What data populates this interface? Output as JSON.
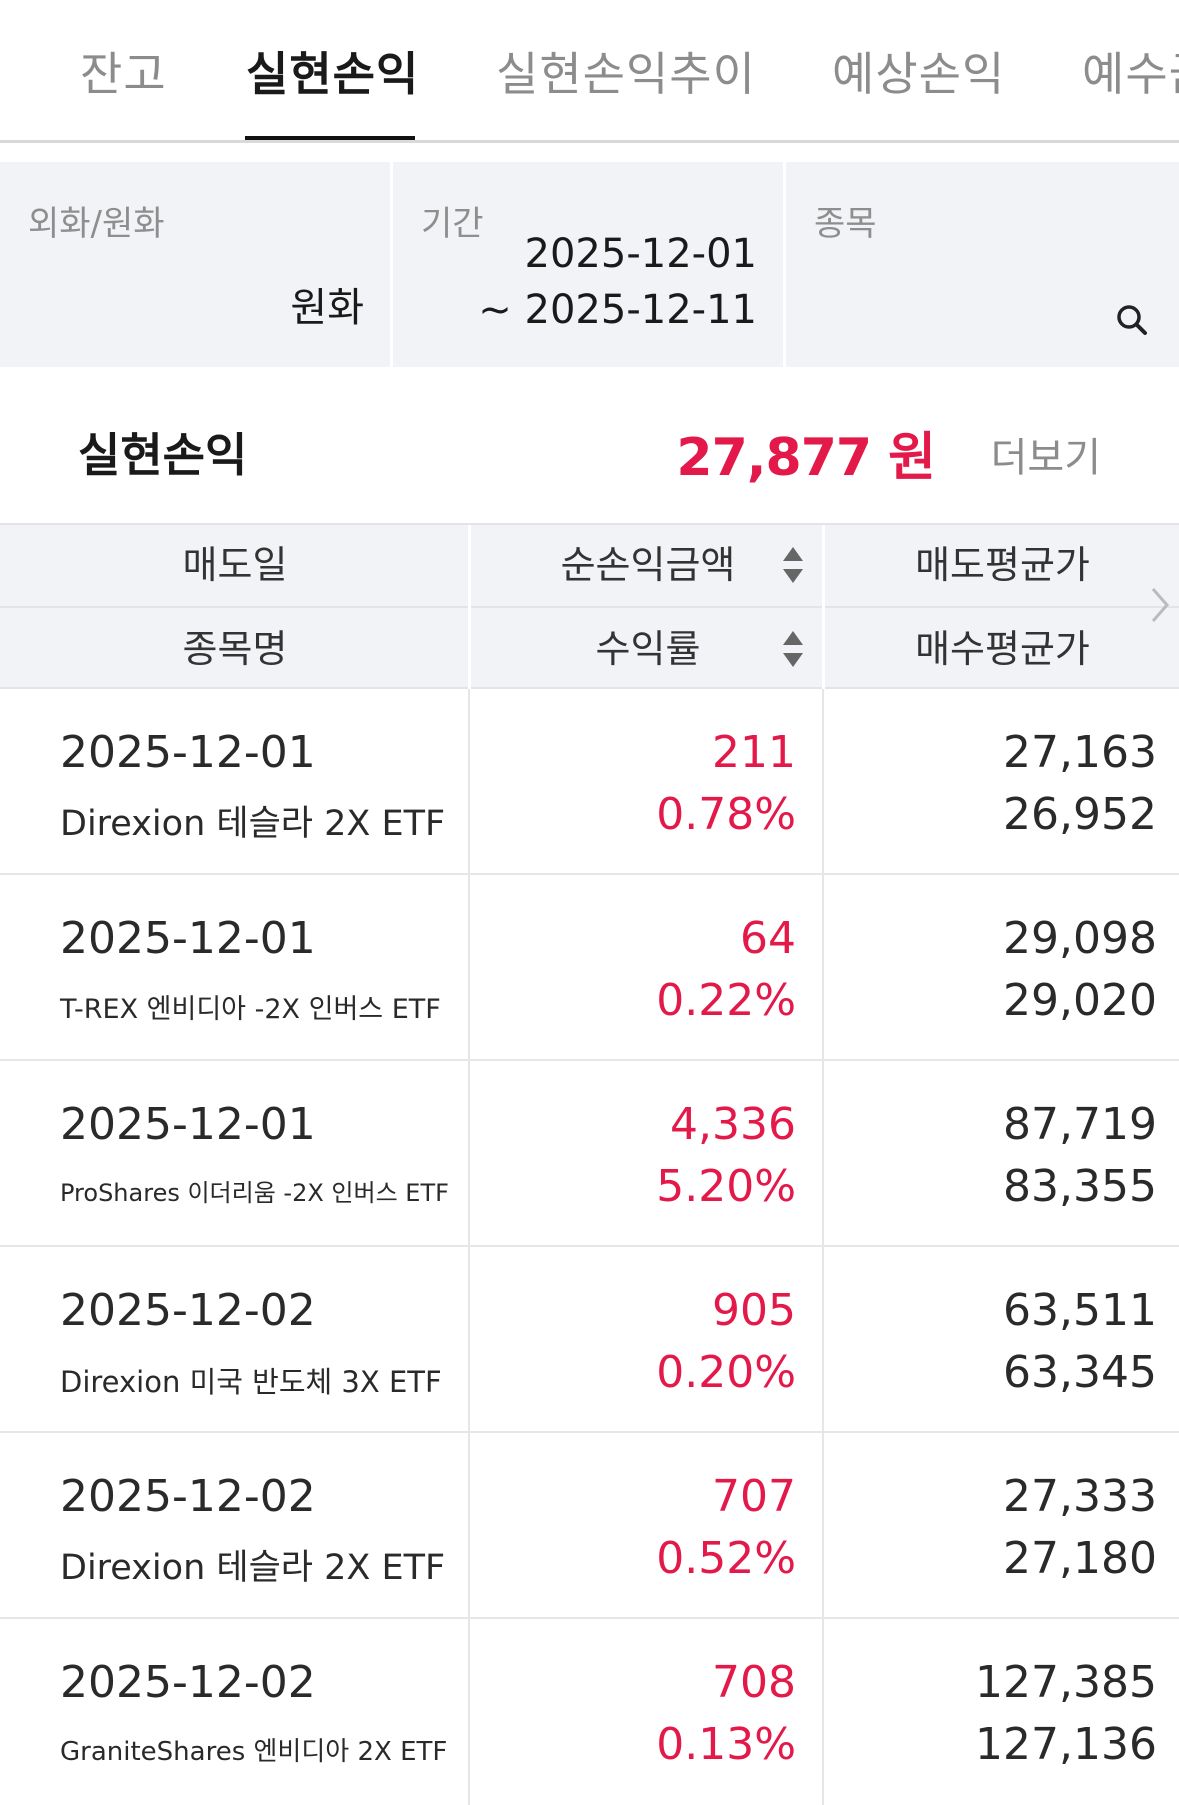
{
  "tabs": [
    {
      "label": "잔고",
      "active": false
    },
    {
      "label": "실현손익",
      "active": true
    },
    {
      "label": "실현손익추이",
      "active": false
    },
    {
      "label": "예상손익",
      "active": false
    },
    {
      "label": "예수금",
      "active": false
    }
  ],
  "filters": {
    "currency": {
      "label": "외화/원화",
      "value": "원화"
    },
    "period": {
      "label": "기간",
      "from": "2025-12-01",
      "to": "~ 2025-12-11"
    },
    "stock": {
      "label": "종목",
      "icon": "search-icon"
    }
  },
  "summary": {
    "title": "실현손익",
    "amount": "27,877 원",
    "more": "더보기"
  },
  "table": {
    "headers": {
      "sell_date": "매도일",
      "net_pl": "순손익금액",
      "sell_avg": "매도평균가",
      "stock_name": "종목명",
      "return_rate": "수익률",
      "buy_avg": "매수평균가"
    },
    "rows": [
      {
        "date": "2025-12-01",
        "name": "Direxion 테슬라 2X ETF",
        "pl": "211",
        "rate": "0.78%",
        "sell": "27,163",
        "buy": "26,952"
      },
      {
        "date": "2025-12-01",
        "name": "T-REX 엔비디아 -2X 인버스 ETF",
        "pl": "64",
        "rate": "0.22%",
        "sell": "29,098",
        "buy": "29,020"
      },
      {
        "date": "2025-12-01",
        "name": "ProShares 이더리움 -2X 인버스 ETF",
        "pl": "4,336",
        "rate": "5.20%",
        "sell": "87,719",
        "buy": "83,355"
      },
      {
        "date": "2025-12-02",
        "name": "Direxion 미국 반도체 3X ETF",
        "pl": "905",
        "rate": "0.20%",
        "sell": "63,511",
        "buy": "63,345"
      },
      {
        "date": "2025-12-02",
        "name": "Direxion 테슬라 2X ETF",
        "pl": "707",
        "rate": "0.52%",
        "sell": "27,333",
        "buy": "27,180"
      },
      {
        "date": "2025-12-02",
        "name": "GraniteShares 엔비디아 2X ETF",
        "pl": "708",
        "rate": "0.13%",
        "sell": "127,385",
        "buy": "127,136"
      }
    ]
  },
  "colors": {
    "profit": "#e3194a",
    "panel_bg": "#f1f3f6"
  }
}
